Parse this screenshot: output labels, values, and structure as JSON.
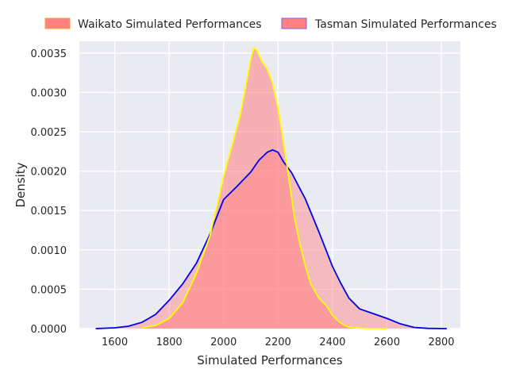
{
  "chart_data": {
    "type": "area",
    "subtype": "kde-density",
    "title": "",
    "xlabel": "Simulated Performances",
    "ylabel": "Density",
    "xlim": [
      1470,
      2870
    ],
    "ylim": [
      0,
      0.00365
    ],
    "xticks": [
      "1600",
      "1800",
      "2000",
      "2200",
      "2400",
      "2600",
      "2800"
    ],
    "xtick_values": [
      1600,
      1800,
      2000,
      2200,
      2400,
      2600,
      2800
    ],
    "yticks": [
      "0.0000",
      "0.0005",
      "0.0010",
      "0.0015",
      "0.0020",
      "0.0025",
      "0.0030",
      "0.0035"
    ],
    "ytick_values": [
      0,
      0.0005,
      0.001,
      0.0015,
      0.002,
      0.0025,
      0.003,
      0.0035
    ],
    "grid": true,
    "legend_position": "top-center",
    "background": "#eaeaf2",
    "series": [
      {
        "name": "Waikato Simulated Performances",
        "fill": "#ff8080",
        "fill_opacity": 0.55,
        "line": "#ffff00",
        "x": [
          1700,
          1750,
          1800,
          1850,
          1900,
          1950,
          2000,
          2030,
          2060,
          2080,
          2100,
          2110,
          2120,
          2140,
          2160,
          2180,
          2200,
          2220,
          2240,
          2260,
          2280,
          2300,
          2320,
          2350,
          2380,
          2400,
          2420,
          2440,
          2460,
          2500,
          2550,
          2600
        ],
        "y": [
          1e-05,
          4e-05,
          0.00013,
          0.00033,
          0.0007,
          0.00118,
          0.00193,
          0.00232,
          0.0027,
          0.00305,
          0.00343,
          0.00356,
          0.00355,
          0.0034,
          0.0033,
          0.00312,
          0.0028,
          0.00237,
          0.0019,
          0.00142,
          0.00108,
          0.0008,
          0.00057,
          0.00039,
          0.00028,
          0.00017,
          0.0001,
          5e-05,
          2e-05,
          5e-06,
          1e-06,
          0
        ]
      },
      {
        "name": "Tasman Simulated Performances",
        "fill": "#ff8080",
        "fill_opacity": 0.45,
        "line": "#0000ee",
        "x": [
          1530,
          1600,
          1650,
          1700,
          1750,
          1800,
          1850,
          1900,
          1950,
          2000,
          2050,
          2100,
          2130,
          2160,
          2180,
          2200,
          2220,
          2250,
          2280,
          2300,
          2350,
          2400,
          2430,
          2460,
          2500,
          2550,
          2600,
          2650,
          2700,
          2750,
          2820
        ],
        "y": [
          0,
          1e-05,
          3e-05,
          8e-05,
          0.00018,
          0.00036,
          0.00057,
          0.00083,
          0.0012,
          0.00164,
          0.00181,
          0.00199,
          0.00214,
          0.00224,
          0.00227,
          0.00224,
          0.00212,
          0.00198,
          0.00178,
          0.00165,
          0.00123,
          0.00079,
          0.00058,
          0.00039,
          0.00025,
          0.00019,
          0.00013,
          6e-05,
          1.5e-05,
          3e-06,
          0
        ]
      }
    ]
  }
}
